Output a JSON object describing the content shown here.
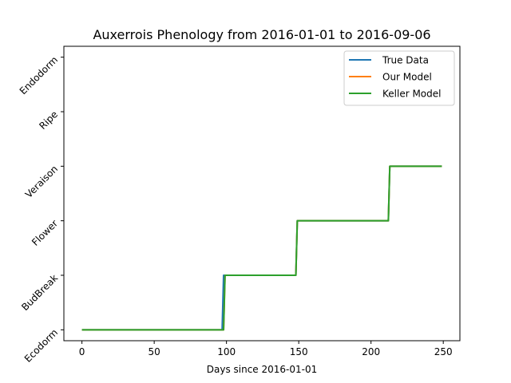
{
  "chart_data": {
    "type": "line",
    "title": "Auxerrois Phenology from 2016-01-01 to 2016-09-06",
    "xlabel": "Days since 2016-01-01",
    "ylabel": "",
    "xlim": [
      -12.5,
      261.5
    ],
    "ylim": [
      -0.2,
      5.2
    ],
    "x_ticks": [
      0,
      50,
      100,
      150,
      200,
      250
    ],
    "y_ticks": [
      {
        "value": 0,
        "label": "Ecodorm"
      },
      {
        "value": 1,
        "label": "BudBreak"
      },
      {
        "value": 2,
        "label": "Flower"
      },
      {
        "value": 3,
        "label": "Veraison"
      },
      {
        "value": 4,
        "label": "Ripe"
      },
      {
        "value": 5,
        "label": "Endodorm"
      }
    ],
    "grid": false,
    "legend": "top-right",
    "series": [
      {
        "name": "True Data",
        "color": "#1f77b4",
        "x": [
          0,
          97,
          98,
          148,
          149,
          212,
          213,
          249
        ],
        "y": [
          0,
          0,
          1,
          1,
          2,
          2,
          3,
          3
        ]
      },
      {
        "name": "Our Model",
        "color": "#ff7f0e",
        "x": [
          0,
          98,
          99,
          148,
          149,
          212,
          213,
          249
        ],
        "y": [
          0,
          0,
          1,
          1,
          2,
          2,
          3,
          3
        ]
      },
      {
        "name": "Keller Model",
        "color": "#2ca02c",
        "x": [
          0,
          98,
          99,
          148,
          149,
          212,
          213,
          249
        ],
        "y": [
          0,
          0,
          1,
          1,
          2,
          2,
          3,
          3
        ]
      }
    ]
  }
}
